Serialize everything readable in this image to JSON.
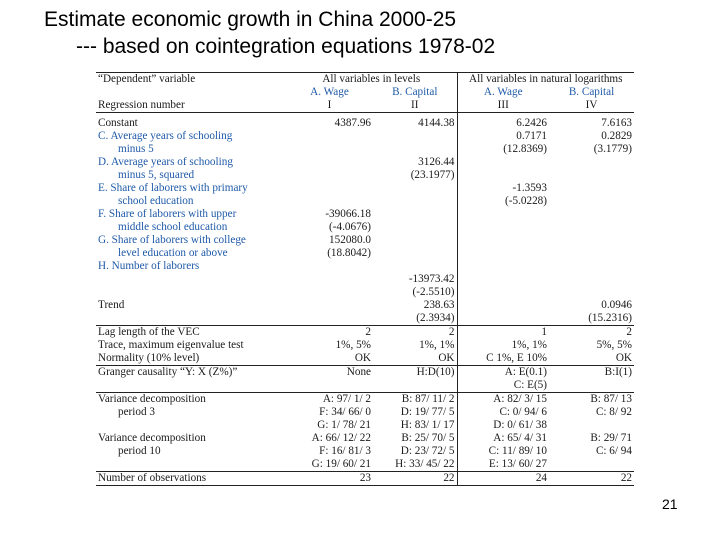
{
  "title": {
    "line1": "Estimate economic growth in China 2000-25",
    "line2": "--- based on cointegration equations 1978-02"
  },
  "table": {
    "hdr": {
      "dependent": "“Dependent” variable",
      "levels": "All variables in levels",
      "logs": "All variables in natural logarithms",
      "regnum": "Regression number",
      "cols": [
        "A. Wage",
        "B. Capital",
        "A. Wage",
        "B. Capital"
      ],
      "nums": [
        "I",
        "II",
        "III",
        "IV"
      ]
    },
    "rows": {
      "constant": {
        "label": "Constant",
        "v": [
          "4387.96",
          "4144.38",
          "6.2426",
          "7.6163"
        ]
      },
      "c": {
        "label1": "C. Average years of schooling",
        "label2": "minus 5",
        "v3": "0.7171",
        "v3t": "(12.8369)",
        "v4": "0.2829",
        "v4t": "(3.1779)"
      },
      "d": {
        "label1": "D. Average years of schooling",
        "label2": "minus 5, squared",
        "v2": "3126.44",
        "v2t": "(23.1977)"
      },
      "e": {
        "label1": "E. Share of laborers with primary",
        "label2": "school education",
        "v3": "-1.3593",
        "v3t": "(-5.0228)"
      },
      "f": {
        "label1": "F. Share of laborers with upper",
        "label2": "middle school education",
        "v1": "-39066.18",
        "v1t": "(-4.0676)"
      },
      "g": {
        "label1": "G. Share of laborers with college",
        "label2": "level education or above",
        "v1": "152080.0",
        "v1t": "(18.8042)"
      },
      "h": {
        "label": "H. Number of laborers",
        "v2": "-13973.42",
        "v2t": "(-2.5510)"
      },
      "trend": {
        "label": "Trend",
        "v2": "238.63",
        "v2t": "(2.3934)",
        "v4": "0.0946",
        "v4t": "(15.2316)"
      },
      "lag": {
        "label": "Lag length of the VEC",
        "v": [
          "2",
          "2",
          "1",
          "2"
        ]
      },
      "trace": {
        "label": "Trace, maximum eigenvalue test",
        "v": [
          "1%, 5%",
          "1%, 1%",
          "1%, 1%",
          "5%, 5%"
        ]
      },
      "norm": {
        "label": "Normality (10% level)",
        "v": [
          "OK",
          "OK",
          "C 1%, E 10%",
          "OK"
        ]
      },
      "granger": {
        "label": "Granger causality “Y: X (Z%)”",
        "v": [
          "None",
          "H:D(10)",
          "A: E(0.1)",
          "B:I(1)"
        ],
        "v3b": "C: E(5)"
      },
      "vd3": {
        "label1": "Variance decomposition",
        "label2": "period 3",
        "c1": [
          "A: 97/ 1/ 2",
          "F: 34/ 66/ 0",
          "G: 1/ 78/ 21"
        ],
        "c2": [
          "B: 87/ 11/ 2",
          "D: 19/ 77/ 5",
          "H: 83/ 1/ 17"
        ],
        "c3": [
          "A: 82/ 3/ 15",
          "C: 0/ 94/ 6",
          "D: 0/ 61/ 38"
        ],
        "c4": [
          "B: 87/ 13",
          "C: 8/ 92"
        ]
      },
      "vd10": {
        "label1": "Variance decomposition",
        "label2": "period 10",
        "c1": [
          "A: 66/ 12/ 22",
          "F: 16/ 81/ 3",
          "G: 19/ 60/ 21"
        ],
        "c2": [
          "B: 25/ 70/ 5",
          "D: 23/ 72/ 5",
          "H: 33/ 45/ 22"
        ],
        "c3": [
          "A: 65/ 4/ 31",
          "C: 11/ 89/ 10",
          "E: 13/ 60/ 27"
        ],
        "c4": [
          "B: 29/ 71",
          "C: 6/ 94"
        ]
      },
      "obs": {
        "label": "Number of observations",
        "v": [
          "23",
          "22",
          "24",
          "22"
        ]
      }
    }
  },
  "page_number": "21"
}
